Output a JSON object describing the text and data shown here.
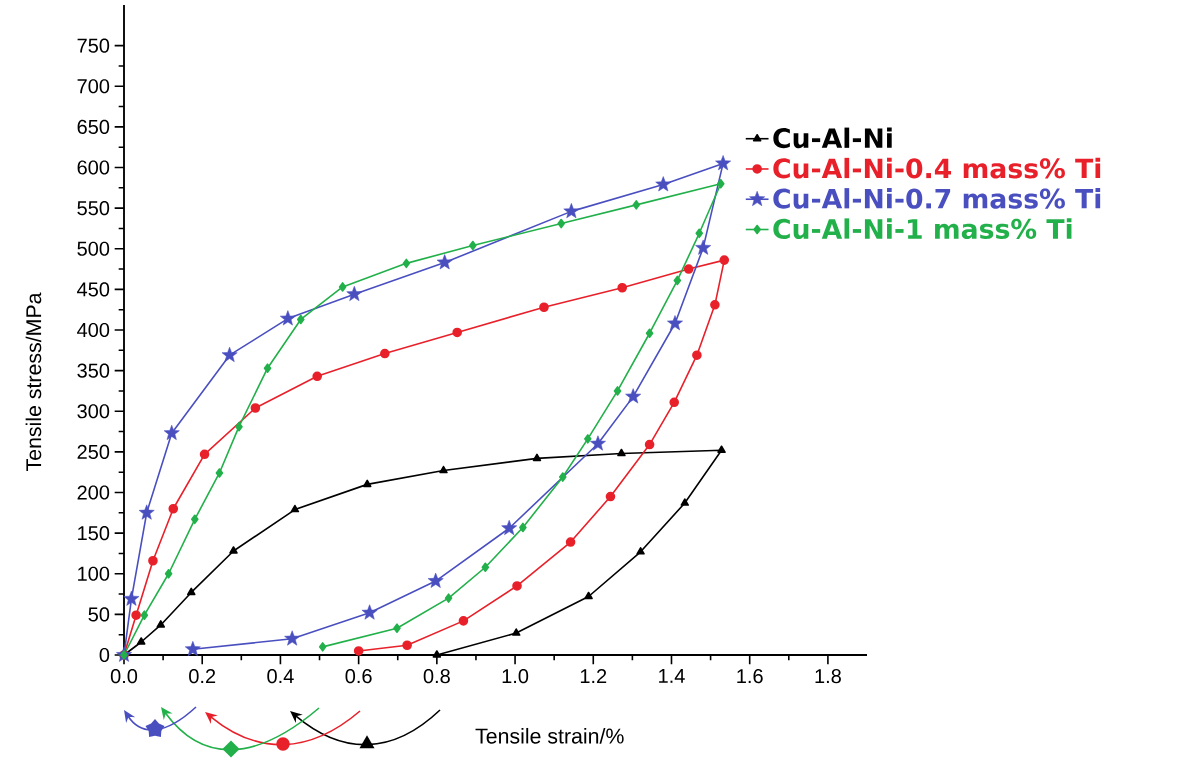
{
  "chart_data": {
    "type": "line",
    "xlabel": "Tensile strain/%",
    "ylabel": "Tensile stress/MPa",
    "xlim": [
      0,
      1.9
    ],
    "ylim": [
      0,
      800
    ],
    "xticks": [
      {
        "value": 0,
        "label": "0.0"
      },
      {
        "value": 0.2,
        "label": "0.2"
      },
      {
        "value": 0.4,
        "label": "0.4"
      },
      {
        "value": 0.6,
        "label": "0.6"
      },
      {
        "value": 0.8,
        "label": "0.8"
      },
      {
        "value": 1.0,
        "label": "1.0"
      },
      {
        "value": 1.2,
        "label": "1.2"
      },
      {
        "value": 1.4,
        "label": "1.4"
      },
      {
        "value": 1.6,
        "label": "1.6"
      },
      {
        "value": 1.8,
        "label": "1.8"
      }
    ],
    "yticks": [
      0,
      50,
      100,
      150,
      200,
      250,
      300,
      350,
      400,
      450,
      500,
      550,
      600,
      650,
      700,
      750
    ],
    "grid": false,
    "legend": "right",
    "line_style": "solid",
    "series": [
      {
        "name": "Cu-Al-Ni",
        "color": "#000000",
        "marker": "triangle",
        "x": [
          0,
          0.044,
          0.094,
          0.172,
          0.28,
          0.437,
          0.622,
          0.817,
          1.056,
          1.272,
          1.528,
          1.434,
          1.321,
          1.188,
          1.003,
          0.8
        ],
        "values": [
          0,
          16,
          37,
          77,
          128,
          179,
          210,
          227,
          242,
          248,
          252,
          187,
          127,
          72,
          27,
          0
        ]
      },
      {
        "name": "Cu-Al-Ni-0.4 mass% Ti",
        "color": "#e8202a",
        "marker": "circle",
        "x": [
          0,
          0.031,
          0.074,
          0.126,
          0.206,
          0.336,
          0.494,
          0.667,
          0.852,
          1.074,
          1.274,
          1.444,
          1.535,
          1.511,
          1.465,
          1.407,
          1.344,
          1.244,
          1.142,
          1.005,
          0.868,
          0.724,
          0.6
        ],
        "values": [
          0,
          49,
          116,
          180,
          247,
          304,
          343,
          371,
          397,
          428,
          452,
          475,
          486,
          431,
          369,
          311,
          259,
          195,
          139,
          85,
          42,
          12,
          5
        ]
      },
      {
        "name": "Cu-Al-Ni-0.7 mass% Ti",
        "color": "#4a4fc0",
        "marker": "star",
        "x": [
          0,
          0.019,
          0.058,
          0.122,
          0.27,
          0.419,
          0.589,
          0.82,
          1.144,
          1.379,
          1.532,
          1.481,
          1.409,
          1.302,
          1.212,
          0.985,
          0.797,
          0.628,
          0.43,
          0.176
        ],
        "values": [
          0,
          69,
          175,
          273,
          369,
          414,
          444,
          483,
          546,
          579,
          605,
          501,
          408,
          318,
          260,
          156,
          91,
          52,
          20,
          7
        ]
      },
      {
        "name": "Cu-Al-Ni-1 mass% Ti",
        "color": "#22b04a",
        "marker": "diamond",
        "x": [
          0,
          0.052,
          0.114,
          0.181,
          0.244,
          0.294,
          0.367,
          0.452,
          0.559,
          0.722,
          0.892,
          1.118,
          1.31,
          1.526,
          1.471,
          1.415,
          1.344,
          1.262,
          1.186,
          1.122,
          1.02,
          0.924,
          0.83,
          0.698,
          0.508
        ],
        "values": [
          0,
          49,
          100,
          167,
          224,
          281,
          353,
          413,
          453,
          482,
          504,
          531,
          554,
          580,
          519,
          461,
          396,
          325,
          266,
          219,
          157,
          108,
          70,
          33,
          10
        ]
      }
    ]
  }
}
